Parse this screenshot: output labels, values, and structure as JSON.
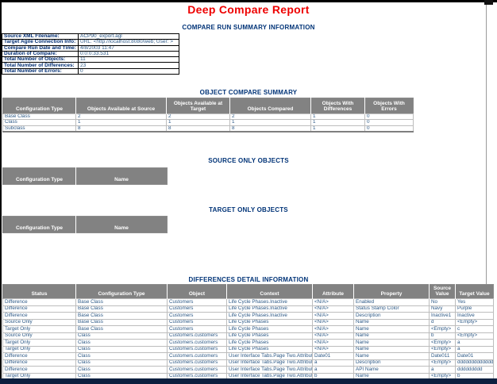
{
  "report": {
    "title": "Deep Compare Report"
  },
  "sections": {
    "summary_heading": "COMPARE RUN SUMMARY INFORMATION",
    "object_summary_heading": "OBJECT COMPARE SUMMARY",
    "source_only_heading": "SOURCE ONLY OBJECTS",
    "target_only_heading": "TARGET ONLY OBJECTS",
    "differences_heading": "DIFFERENCES DETAIL INFORMATION"
  },
  "summary_info": {
    "rows": [
      {
        "label": "Source XML Filename:",
        "value": "ACP90_export.agl"
      },
      {
        "label": "Target Agile Connection  Info:",
        "value": "URL: <http://localhost:8080/web; User: >"
      },
      {
        "label": "Compare Run Date and Time:",
        "value": "4/8/2003 11:47"
      },
      {
        "label": "Duration of Compare:",
        "value": "0:0:0:33.531"
      },
      {
        "label": "Total Number of Objects:",
        "value": "11"
      },
      {
        "label": "Total Number of Differences:",
        "value": "23"
      },
      {
        "label": "Total Number of Errors:",
        "value": "0"
      }
    ]
  },
  "object_summary_table": {
    "headers": [
      "Configuration Type",
      "Objects Available at Source",
      "Objects Available at Target",
      "Objects Compared",
      "Objects With Differences",
      "Objects With Errors"
    ],
    "rows": [
      [
        "Base Class",
        "2",
        "2",
        "2",
        "1",
        "0"
      ],
      [
        "Class",
        "1",
        "1",
        "1",
        "1",
        "0"
      ],
      [
        "Subclass",
        "8",
        "8",
        "8",
        "1",
        "0"
      ]
    ]
  },
  "source_only_table": {
    "headers": [
      "Configuration Type",
      "Name"
    ],
    "rows": []
  },
  "target_only_table": {
    "headers": [
      "Configuration Type",
      "Name"
    ],
    "rows": []
  },
  "differences_table": {
    "headers": [
      "Status",
      "Configuration Type",
      "Object",
      "Context",
      "Attribute",
      "Property",
      "Source Value",
      "Target Value"
    ],
    "rows": [
      [
        "Difference",
        "Base Class",
        "Customers",
        "Life Cycle Phases.Inactive",
        "<N/A>",
        "Enabled",
        "No",
        "Yes"
      ],
      [
        "Difference",
        "Base Class",
        "Customers",
        "Life Cycle Phases.Inactive",
        "<N/A>",
        "Status Stamp Color",
        "Navy",
        "Purple"
      ],
      [
        "Difference",
        "Base Class",
        "Customers",
        "Life Cycle Phases.Inactive",
        "<N/A>",
        "Description",
        "Inactive1",
        "Inactive"
      ],
      [
        "Source Only",
        "Base Class",
        "Customers",
        "Life Cycle Phases",
        "<N/A>",
        "Name",
        "d",
        "<Empty>"
      ],
      [
        "Target Only",
        "Base Class",
        "Customers",
        "Life Cycle Phases",
        "<N/A>",
        "Name",
        "<Empty>",
        "c"
      ],
      [
        "Source Only",
        "Class",
        "Customers.customers",
        "Life Cycle Phases",
        "<N/A>",
        "Name",
        "b",
        "<Empty>"
      ],
      [
        "Target Only",
        "Class",
        "Customers.customers",
        "Life Cycle Phases",
        "<N/A>",
        "Name",
        "<Empty>",
        "a"
      ],
      [
        "Target Only",
        "Class",
        "Customers.customers",
        "Life Cycle Phases",
        "<N/A>",
        "Name",
        "<Empty>",
        "a"
      ],
      [
        "Difference",
        "Class",
        "Customers.customers",
        "User Interface Tabs.Page Two.Attributes",
        "Date01",
        "Name",
        "Date011",
        "Date01"
      ],
      [
        "Difference",
        "Class",
        "Customers.customers",
        "User Interface Tabs.Page Two.Attributes",
        "a",
        "Description",
        "<Empty>",
        "dddddddddddddddd"
      ],
      [
        "Difference",
        "Class",
        "Customers.customers",
        "User Interface Tabs.Page Two.Attributes",
        "a",
        "API Name",
        "a",
        "ddddddddd"
      ],
      [
        "Target Only",
        "Class",
        "Customers.customers",
        "User Interface Tabs.Page Two.Attributes",
        "b",
        "Name",
        "<Empty>",
        "b"
      ]
    ]
  },
  "colors": {
    "title_red": "#ee0000",
    "heading_navy": "#003377",
    "table_header_gray": "#828282",
    "cell_text_navy": "#2d5986",
    "label_navy": "#002d72",
    "bottom_strip_navy": "#0c1f3f"
  }
}
